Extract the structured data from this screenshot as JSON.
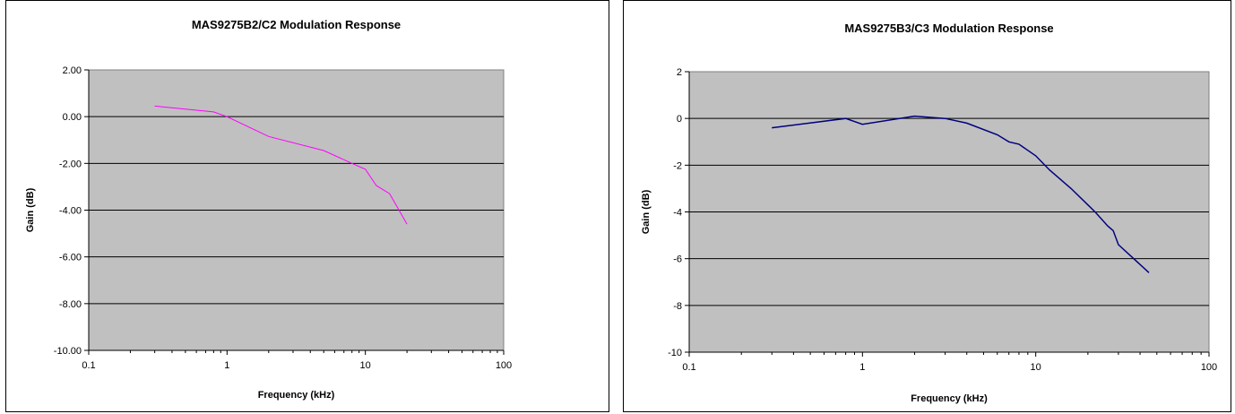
{
  "chart_data": [
    {
      "type": "line",
      "title": "MAS9275B2/C2 Modulation Response",
      "xlabel": "Frequency (kHz)",
      "ylabel": "Gain (dB)",
      "xscale": "log",
      "xlim": [
        0.1,
        100
      ],
      "ylim": [
        -10,
        2
      ],
      "xticks": [
        "0.1",
        "1",
        "10",
        "100"
      ],
      "yticks": [
        "2.00",
        "0.00",
        "-2.00",
        "-4.00",
        "-6.00",
        "-8.00",
        "-10.00"
      ],
      "plot_background": "#c0c0c0",
      "grid": "horizontal",
      "series": [
        {
          "color": "#ff00ff",
          "x": [
            0.3,
            0.8,
            1,
            2,
            5,
            8,
            10,
            12,
            15,
            20
          ],
          "y": [
            0.45,
            0.2,
            0.0,
            -0.85,
            -1.45,
            -2.0,
            -2.25,
            -2.95,
            -3.3,
            -4.6
          ]
        }
      ]
    },
    {
      "type": "line",
      "title": "MAS9275B3/C3 Modulation Response",
      "xlabel": "Frequency (kHz)",
      "ylabel": "Gain (dB)",
      "xscale": "log",
      "xlim": [
        0.1,
        100
      ],
      "ylim": [
        -10,
        2
      ],
      "xticks": [
        "0.1",
        "1",
        "10",
        "100"
      ],
      "yticks": [
        "2",
        "0",
        "-2",
        "-4",
        "-6",
        "-8",
        "-10"
      ],
      "plot_background": "#c0c0c0",
      "grid": "horizontal",
      "series": [
        {
          "color": "#000080",
          "x": [
            0.3,
            0.8,
            1,
            2,
            3,
            4,
            6,
            7,
            8,
            10,
            12,
            16,
            20,
            22,
            26,
            28,
            30,
            45
          ],
          "y": [
            -0.4,
            0.0,
            -0.25,
            0.1,
            0.0,
            -0.2,
            -0.7,
            -1.0,
            -1.1,
            -1.6,
            -2.2,
            -3.0,
            -3.7,
            -4.0,
            -4.6,
            -4.8,
            -5.4,
            -6.6
          ]
        }
      ]
    }
  ]
}
